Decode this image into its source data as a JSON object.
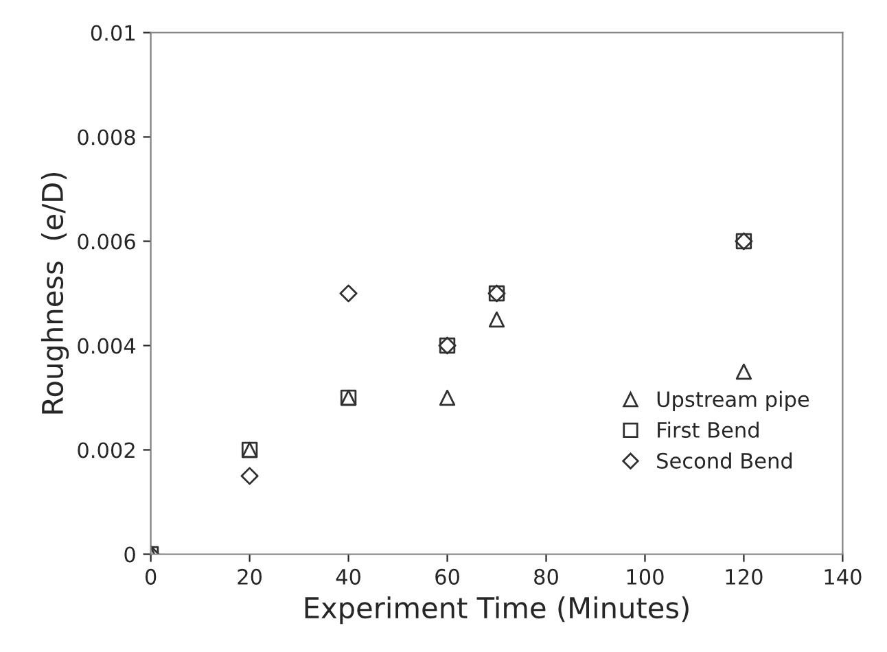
{
  "chart_data": {
    "type": "scatter",
    "xlabel": "Experiment Time (Minutes)",
    "ylabel": "Roughness  (e/D)",
    "x": [
      0,
      20,
      40,
      60,
      70,
      120
    ],
    "series": [
      {
        "name": "Upstream pipe",
        "color": "#303030",
        "marker": "triangle",
        "values": [
          0,
          0.002,
          0.003,
          0.003,
          0.0045,
          0.0035
        ]
      },
      {
        "name": "First Bend",
        "color": "#303030",
        "marker": "square",
        "values": [
          0,
          0.002,
          0.003,
          0.004,
          0.005,
          0.006
        ]
      },
      {
        "name": "Second Bend",
        "color": "#303030",
        "marker": "diamond",
        "values": [
          0,
          0.0015,
          0.005,
          0.004,
          0.005,
          0.006
        ]
      }
    ],
    "xlim": [
      0,
      140
    ],
    "xticks": [
      0,
      20,
      40,
      60,
      80,
      100,
      120,
      140
    ],
    "ylim": [
      0,
      0.01
    ],
    "yticks": [
      0,
      0.002,
      0.004,
      0.006,
      0.008,
      0.01
    ],
    "grid": false,
    "legend": "bottom right"
  }
}
